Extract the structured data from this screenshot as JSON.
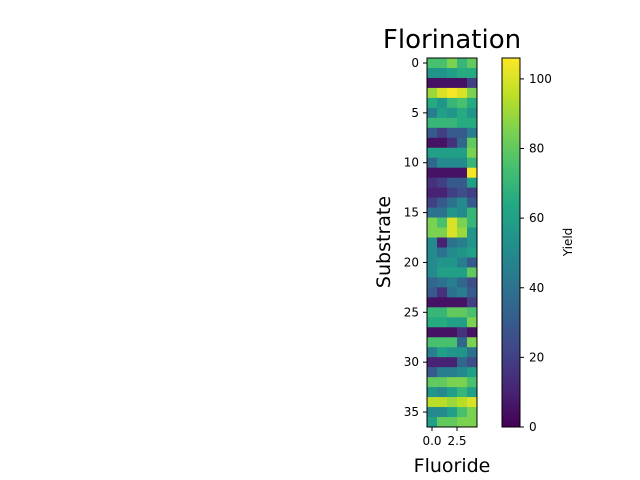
{
  "chart_data": {
    "type": "heatmap",
    "title": "Florination",
    "xlabel": "Fluoride",
    "ylabel": "Substrate",
    "x_ticks": [
      0.0,
      2.5
    ],
    "x_tick_labels": [
      "0.0",
      "2.5"
    ],
    "y_ticks": [
      0,
      5,
      10,
      15,
      20,
      25,
      30,
      35
    ],
    "y_tick_labels": [
      "0",
      "5",
      "10",
      "15",
      "20",
      "25",
      "30",
      "35"
    ],
    "colorbar": {
      "label": "Yield",
      "range": [
        0,
        106
      ],
      "ticks": [
        0,
        20,
        40,
        60,
        80,
        100
      ],
      "tick_labels": [
        "0",
        "20",
        "40",
        "60",
        "80",
        "100"
      ],
      "colormap": "viridis"
    },
    "n_rows": 37,
    "n_cols": 5,
    "values": [
      [
        75,
        75,
        85,
        70,
        80
      ],
      [
        55,
        55,
        60,
        65,
        65
      ],
      [
        5,
        5,
        5,
        5,
        20
      ],
      [
        90,
        100,
        105,
        100,
        85
      ],
      [
        65,
        55,
        70,
        75,
        65
      ],
      [
        45,
        60,
        55,
        65,
        55
      ],
      [
        70,
        70,
        70,
        65,
        65
      ],
      [
        30,
        20,
        30,
        30,
        45
      ],
      [
        5,
        5,
        15,
        35,
        80
      ],
      [
        60,
        60,
        60,
        60,
        85
      ],
      [
        35,
        50,
        50,
        50,
        70
      ],
      [
        5,
        5,
        5,
        5,
        105
      ],
      [
        15,
        20,
        30,
        30,
        60
      ],
      [
        10,
        10,
        20,
        25,
        20
      ],
      [
        20,
        30,
        40,
        50,
        30
      ],
      [
        40,
        40,
        55,
        50,
        70
      ],
      [
        85,
        75,
        100,
        85,
        70
      ],
      [
        85,
        85,
        100,
        90,
        55
      ],
      [
        50,
        10,
        40,
        45,
        55
      ],
      [
        50,
        40,
        50,
        55,
        60
      ],
      [
        50,
        55,
        55,
        45,
        30
      ],
      [
        50,
        60,
        60,
        60,
        80
      ],
      [
        35,
        40,
        45,
        35,
        25
      ],
      [
        30,
        15,
        40,
        45,
        30
      ],
      [
        5,
        5,
        5,
        5,
        20
      ],
      [
        70,
        70,
        80,
        80,
        75
      ],
      [
        65,
        65,
        60,
        60,
        85
      ],
      [
        5,
        5,
        5,
        15,
        5
      ],
      [
        75,
        75,
        75,
        35,
        85
      ],
      [
        45,
        60,
        55,
        55,
        40
      ],
      [
        10,
        10,
        10,
        35,
        25
      ],
      [
        30,
        45,
        45,
        50,
        60
      ],
      [
        80,
        80,
        85,
        85,
        75
      ],
      [
        55,
        50,
        60,
        70,
        60
      ],
      [
        95,
        95,
        90,
        95,
        100
      ],
      [
        50,
        50,
        60,
        75,
        85
      ],
      [
        60,
        80,
        80,
        85,
        85
      ]
    ]
  }
}
